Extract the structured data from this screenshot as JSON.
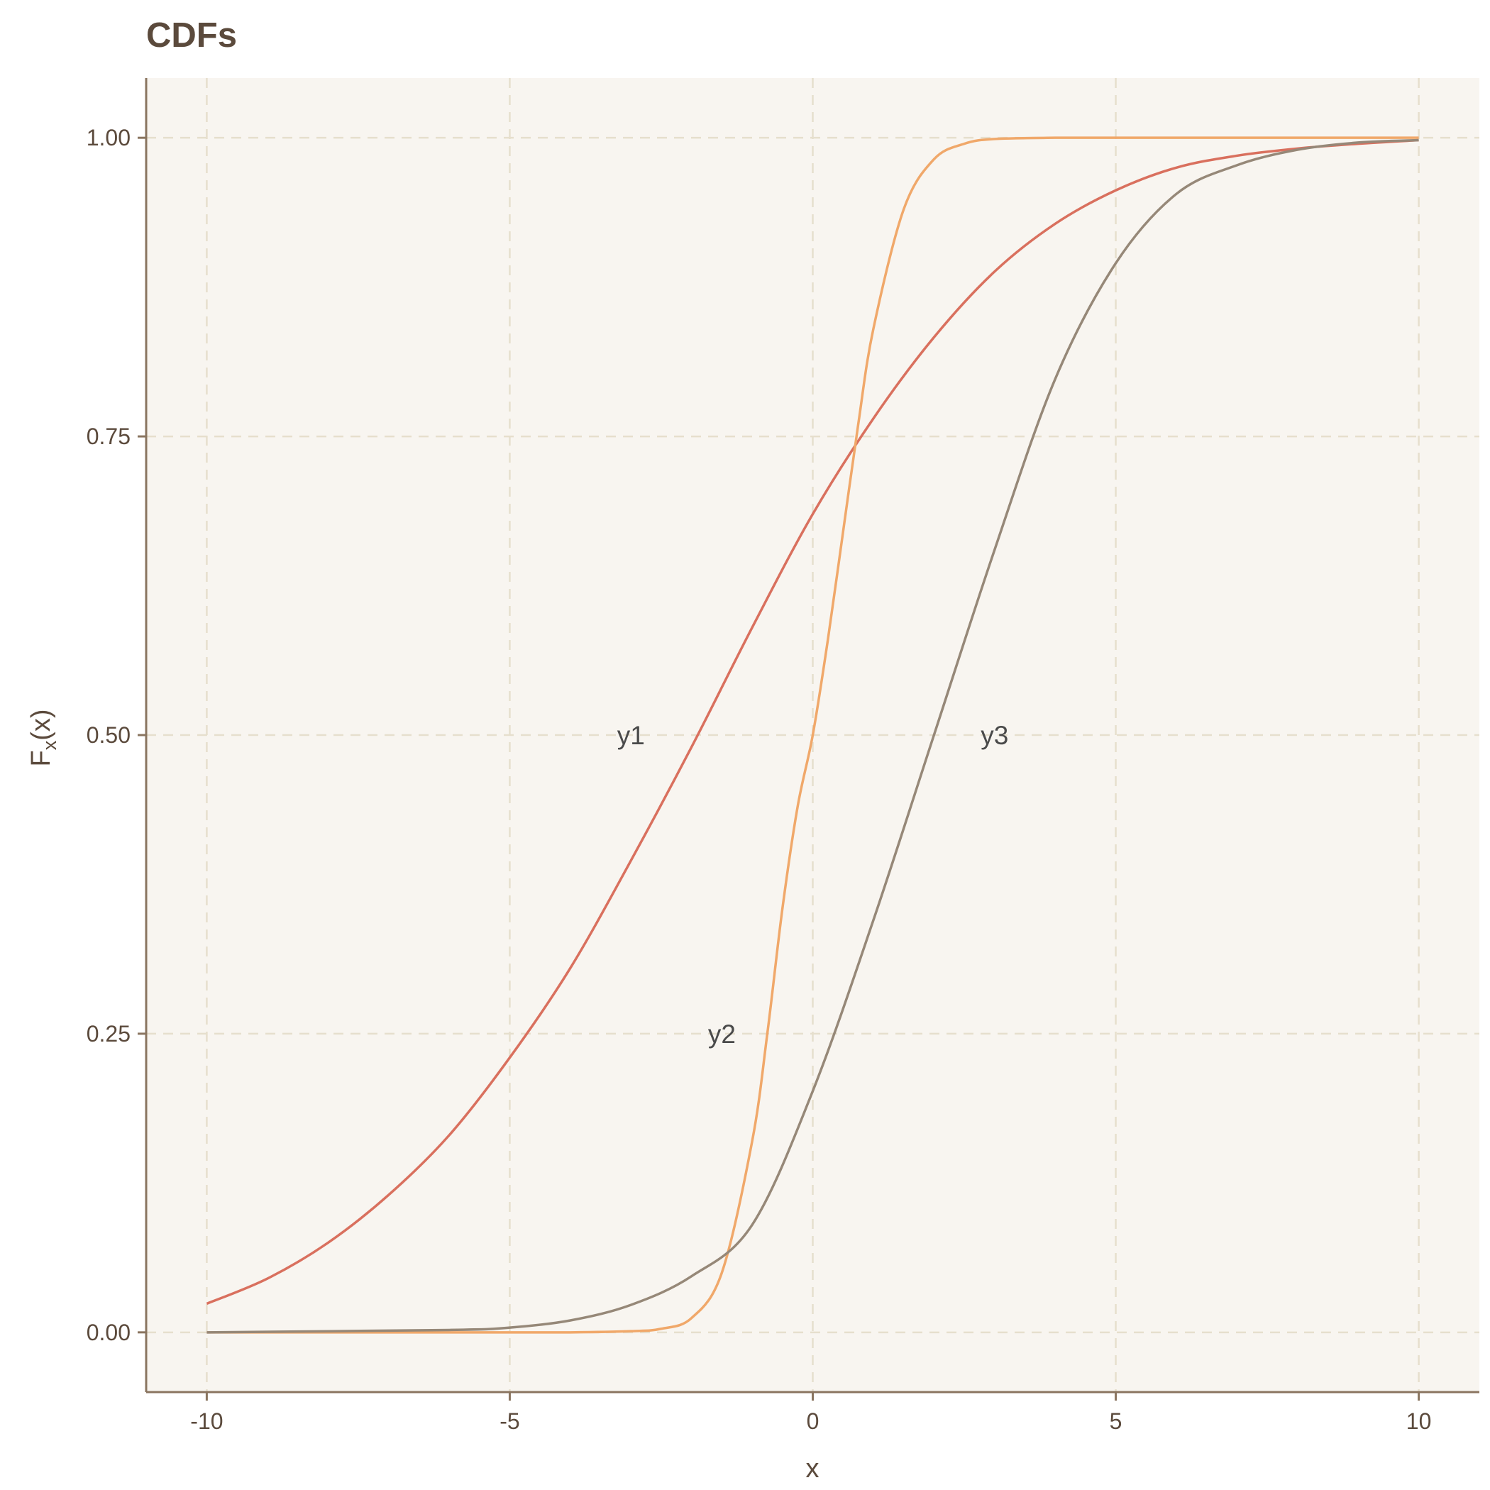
{
  "chart_data": {
    "type": "line",
    "title": "CDFs",
    "xlabel": "x",
    "ylabel": "F",
    "ylabel_subscript": "x",
    "ylabel_suffix": "(x)",
    "xlim": [
      -11,
      11
    ],
    "ylim": [
      -0.05,
      1.05
    ],
    "x_ticks": [
      -10,
      -5,
      0,
      5,
      10
    ],
    "x_tick_labels": [
      "-10",
      "-5",
      "0",
      "5",
      "10"
    ],
    "y_ticks": [
      0,
      0.25,
      0.5,
      0.75,
      1
    ],
    "y_tick_labels": [
      "0.00",
      "0.25",
      "0.50",
      "0.75",
      "1.00"
    ],
    "grid": true,
    "legend": "none",
    "background": "#f8f5f0",
    "series": [
      {
        "name": "y1",
        "color": "#d9705e",
        "label_pos": [
          -3.0,
          0.5
        ],
        "x": [
          -10,
          -9,
          -8,
          -7,
          -6,
          -5,
          -4,
          -3,
          -2,
          -1,
          0,
          1,
          2,
          3,
          4,
          5,
          6,
          7,
          8,
          9,
          10
        ],
        "y": [
          0.024,
          0.045,
          0.075,
          0.115,
          0.165,
          0.23,
          0.305,
          0.395,
          0.49,
          0.59,
          0.685,
          0.765,
          0.833,
          0.888,
          0.928,
          0.956,
          0.975,
          0.985,
          0.991,
          0.995,
          0.998
        ]
      },
      {
        "name": "y2",
        "color": "#f0a86a",
        "label_pos": [
          -1.5,
          0.25
        ],
        "x": [
          -10,
          -5,
          -4,
          -3,
          -2.5,
          -2,
          -1.5,
          -1,
          -0.75,
          -0.5,
          -0.25,
          0,
          0.25,
          0.5,
          0.75,
          1,
          1.5,
          2,
          2.5,
          3,
          4,
          5,
          10
        ],
        "y": [
          0,
          0,
          0,
          0.001,
          0.003,
          0.012,
          0.05,
          0.16,
          0.25,
          0.355,
          0.44,
          0.5,
          0.58,
          0.67,
          0.76,
          0.84,
          0.94,
          0.982,
          0.995,
          0.999,
          1,
          1,
          1
        ]
      },
      {
        "name": "y3",
        "color": "#968878",
        "label_pos": [
          3.0,
          0.5
        ],
        "x": [
          -10,
          -6,
          -5,
          -4,
          -3,
          -2,
          -1,
          0,
          1,
          2,
          3,
          4,
          5,
          6,
          7,
          8,
          9,
          10
        ],
        "y": [
          0,
          0.002,
          0.004,
          0.01,
          0.023,
          0.047,
          0.09,
          0.202,
          0.345,
          0.5,
          0.655,
          0.798,
          0.895,
          0.953,
          0.977,
          0.99,
          0.996,
          0.998
        ]
      }
    ]
  }
}
